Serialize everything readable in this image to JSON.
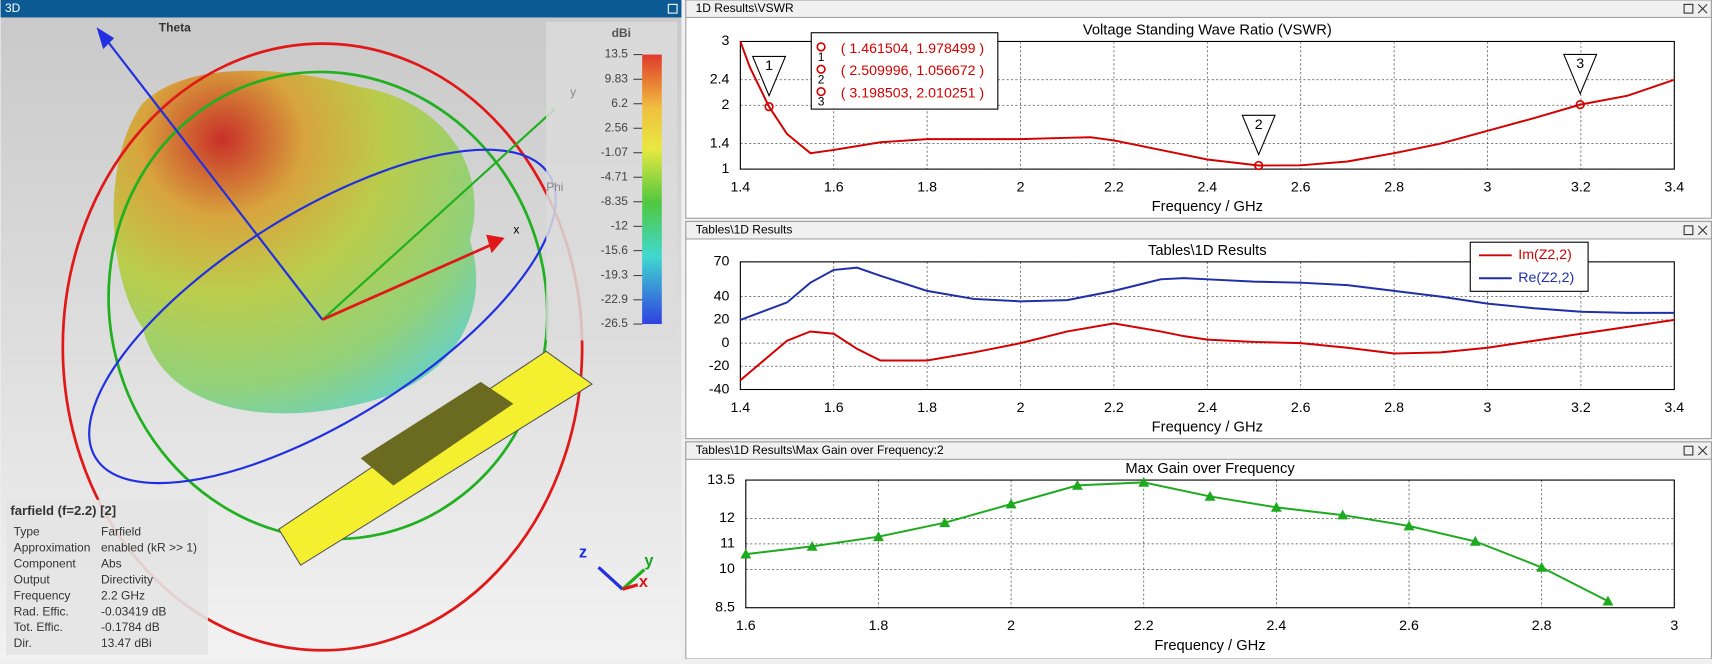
{
  "view3d": {
    "panel_title": "3D",
    "axis_labels": {
      "theta": "Theta",
      "phi": "Phi",
      "x": "x",
      "y": "y"
    },
    "triad": {
      "z": "z",
      "y": "y",
      "x": "x"
    },
    "colorbar": {
      "title": "dBi",
      "lim": [
        -26.5,
        13.5
      ],
      "ticks": [
        13.5,
        9.83,
        6.2,
        2.56,
        -1.07,
        -4.71,
        -8.35,
        -12,
        -15.6,
        -19.3,
        -22.9,
        -26.5
      ]
    },
    "info": {
      "title": "farfield (f=2.2) [2]",
      "rows": [
        [
          "Type",
          "Farfield"
        ],
        [
          "Approximation",
          "enabled (kR >> 1)"
        ],
        [
          "Component",
          "Abs"
        ],
        [
          "Output",
          "Directivity"
        ],
        [
          "Frequency",
          "2.2 GHz"
        ],
        [
          "Rad. Effic.",
          "-0.03419 dB"
        ],
        [
          "Tot. Effic.",
          "-0.1784 dB"
        ],
        [
          "Dir.",
          "13.47 dBi"
        ]
      ]
    }
  },
  "chart_data": [
    {
      "type": "line",
      "panel_title": "1D Results\\VSWR",
      "title": "Voltage Standing Wave Ratio (VSWR)",
      "x_label": "Frequency / GHz",
      "x": [
        1.4,
        1.42,
        1.461504,
        1.5,
        1.55,
        1.6,
        1.7,
        1.8,
        1.9,
        2.0,
        2.1,
        2.15,
        2.2,
        2.3,
        2.4,
        2.509996,
        2.6,
        2.7,
        2.8,
        2.9,
        3.0,
        3.1,
        3.198503,
        3.3,
        3.4
      ],
      "values": [
        3.0,
        2.6,
        1.978499,
        1.55,
        1.25,
        1.3,
        1.42,
        1.47,
        1.47,
        1.47,
        1.49,
        1.5,
        1.45,
        1.3,
        1.15,
        1.056672,
        1.06,
        1.12,
        1.25,
        1.4,
        1.6,
        1.8,
        2.010251,
        2.15,
        2.4
      ],
      "color": "#d40000",
      "xlim": [
        1.4,
        3.4
      ],
      "xticks": [
        1.4,
        1.6,
        1.8,
        2,
        2.2,
        2.4,
        2.6,
        2.8,
        3,
        3.2,
        3.4
      ],
      "ylim": [
        1,
        3
      ],
      "yticks": [
        1,
        1.4,
        2,
        2.4,
        3
      ],
      "grid": true,
      "markers": [
        {
          "label": "1",
          "x": 1.461504,
          "y": 1.978499,
          "text": "( 1.461504, 1.978499 )"
        },
        {
          "label": "2",
          "x": 2.509996,
          "y": 1.056672,
          "text": "( 2.509996, 1.056672 )"
        },
        {
          "label": "3",
          "x": 3.198503,
          "y": 2.010251,
          "text": "( 3.198503, 2.010251 )"
        }
      ]
    },
    {
      "type": "line",
      "panel_title": "Tables\\1D Results",
      "title": "Tables\\1D Results",
      "x_label": "Frequency / GHz",
      "x": [
        1.4,
        1.5,
        1.55,
        1.6,
        1.65,
        1.7,
        1.8,
        1.9,
        2.0,
        2.1,
        2.2,
        2.3,
        2.35,
        2.4,
        2.5,
        2.6,
        2.7,
        2.8,
        2.9,
        3.0,
        3.1,
        3.2,
        3.3,
        3.4
      ],
      "series": [
        {
          "name": "Im(Z2,2)",
          "color": "#d40000",
          "values": [
            -32,
            2,
            10,
            8,
            -5,
            -15,
            -15,
            -8,
            0,
            10,
            17,
            10,
            6,
            3,
            1,
            0,
            -4,
            -9,
            -8,
            -4,
            2,
            8,
            14,
            20
          ]
        },
        {
          "name": "Re(Z2,2)",
          "color": "#1f2fa8",
          "values": [
            20,
            35,
            52,
            63,
            65,
            58,
            45,
            38,
            36,
            37,
            45,
            55,
            56,
            55,
            53,
            52,
            50,
            45,
            40,
            34,
            30,
            27,
            26,
            26
          ]
        }
      ],
      "xlim": [
        1.4,
        3.4
      ],
      "xticks": [
        1.4,
        1.6,
        1.8,
        2,
        2.2,
        2.4,
        2.6,
        2.8,
        3,
        3.2,
        3.4
      ],
      "ylim": [
        -40,
        70
      ],
      "yticks": [
        -40,
        -20,
        0,
        20,
        40,
        70
      ],
      "grid": true,
      "legend": "top-right"
    },
    {
      "type": "line",
      "panel_title": "Tables\\1D Results\\Max Gain over Frequency:2",
      "title": "Max Gain over Frequency",
      "x_label": "Frequency / GHz",
      "marker": "triangle",
      "x": [
        1.6,
        1.7,
        1.8,
        1.9,
        2.0,
        2.1,
        2.2,
        2.3,
        2.4,
        2.5,
        2.6,
        2.7,
        2.8,
        2.9
      ],
      "values": [
        10.6,
        10.9,
        11.28,
        11.83,
        12.56,
        13.29,
        13.41,
        12.86,
        12.43,
        12.13,
        11.7,
        11.1,
        10.08,
        8.76
      ],
      "color": "#1eaa1e",
      "xlim": [
        1.6,
        3
      ],
      "xticks": [
        1.6,
        1.8,
        2,
        2.2,
        2.4,
        2.6,
        2.8,
        3
      ],
      "ylim": [
        8.5,
        13.5
      ],
      "yticks": [
        8.5,
        10,
        11,
        12,
        13.5
      ],
      "grid": true
    }
  ]
}
